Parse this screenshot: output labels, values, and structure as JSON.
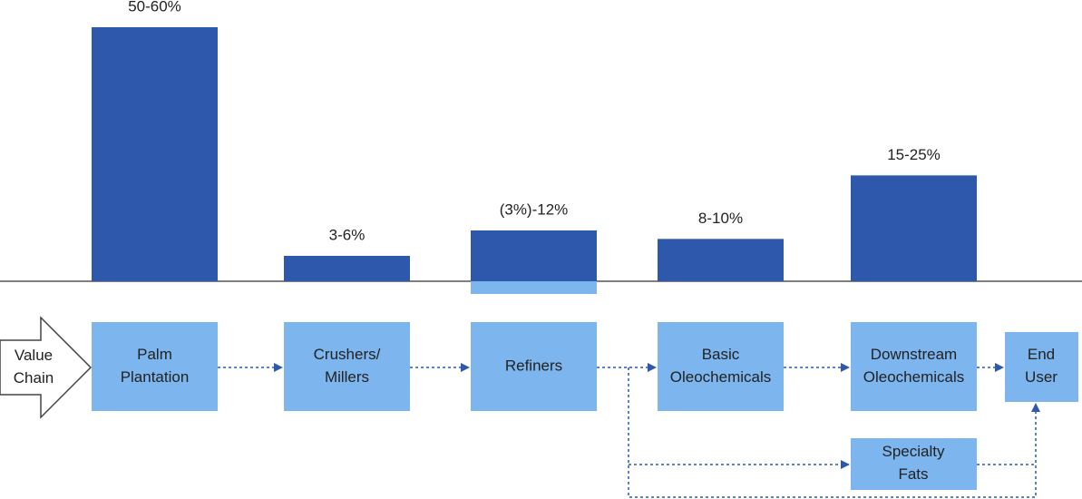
{
  "chart_data": {
    "type": "bar",
    "categories": [
      [
        "Palm",
        "Plantation"
      ],
      [
        "Crushers/",
        "Millers"
      ],
      [
        "Refiners"
      ],
      [
        "Basic",
        "Oleochemicals"
      ],
      [
        "Downstream",
        "Oleochemicals"
      ]
    ],
    "values": [
      60,
      6,
      12,
      10,
      25
    ],
    "low": [
      null,
      null,
      -3,
      null,
      null
    ],
    "value_labels": [
      "50-60%",
      "3-6%",
      "(3%)-12%",
      "8-10%",
      "15-25%"
    ],
    "color": "#2d58ac",
    "negative_color": "#7db5ee",
    "box_color": "#7db5ee",
    "ylim": [
      -6,
      60
    ],
    "row_label": [
      "Value",
      "Chain"
    ],
    "end_node": [
      "End",
      "User"
    ],
    "side_node": [
      "Specialty",
      "Fats"
    ]
  }
}
